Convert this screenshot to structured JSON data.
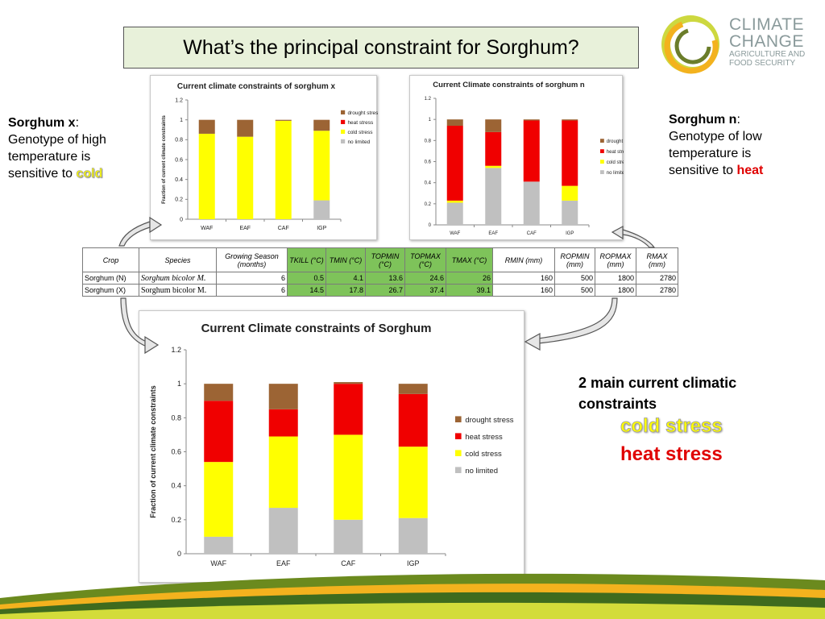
{
  "slide": {
    "title": "What’s the principal constraint for Sorghum?",
    "logo": {
      "line1": "CLIMATE",
      "line2": "CHANGE",
      "line3": "AGRICULTURE AND",
      "line4": "FOOD SECURITY"
    },
    "left_note": {
      "name": "Sorghum x",
      "colon": ":",
      "line1": "Genotype of high",
      "line2": "temperature is",
      "line3": "sensitive to ",
      "highlight": "cold"
    },
    "right_note": {
      "name": "Sorghum n",
      "colon": ":",
      "line1": "Genotype of low",
      "line2": "temperature is",
      "line3": "sensitive to ",
      "highlight": "heat"
    },
    "constraints": {
      "line1": "2 main current climatic",
      "line2": "constraints",
      "item1": "cold stress",
      "item2": "heat stress"
    }
  },
  "colors": {
    "drought": "#9c6434",
    "heat": "#f00000",
    "cold": "#ffff00",
    "nolimit": "#c0c0c0",
    "title_bg": "#e8f1da",
    "table_green": "#7ec35a"
  },
  "table": {
    "headers": [
      "Crop",
      "Species",
      "Growing Season (months)",
      "TKILL (°C)",
      "TMIN (°C)",
      "TOPMIN (°C)",
      "TOPMAX (°C)",
      "TMAX (°C)",
      "RMIN (mm)",
      "ROPMIN (mm)",
      "ROPMAX (mm)",
      "RMAX (mm)"
    ],
    "rows": [
      [
        "Sorghum (N)",
        "Sorghum bicolor M.",
        "6",
        "0.5",
        "4.1",
        "13.6",
        "24.6",
        "26",
        "160",
        "500",
        "1800",
        "2780"
      ],
      [
        "Sorghum (X)",
        "Sorghum bicolor M.",
        "6",
        "14.5",
        "17.8",
        "26.7",
        "37.4",
        "39.1",
        "160",
        "500",
        "1800",
        "2780"
      ]
    ]
  },
  "chart_data": [
    {
      "type": "bar",
      "stacked": true,
      "title": "Current climate constraints of sorghum x",
      "ylabel": "Fraction of current climate constraints",
      "xlabel": "",
      "ylim": [
        0,
        1.2
      ],
      "yticks": [
        "0",
        "0.2",
        "0.4",
        "0.6",
        "0.8",
        "1",
        "1.2"
      ],
      "categories": [
        "WAF",
        "EAF",
        "CAF",
        "IGP"
      ],
      "legend_position": "right",
      "series": [
        {
          "name": "no limited",
          "color": "#c0c0c0",
          "values": [
            0,
            0,
            0,
            0.19
          ]
        },
        {
          "name": "cold stress",
          "color": "#ffff00",
          "values": [
            0.86,
            0.83,
            0.99,
            0.7
          ]
        },
        {
          "name": "heat stress",
          "color": "#f00000",
          "values": [
            0,
            0,
            0,
            0
          ]
        },
        {
          "name": "drought stress",
          "color": "#9c6434",
          "values": [
            0.14,
            0.17,
            0.01,
            0.11
          ]
        }
      ]
    },
    {
      "type": "bar",
      "stacked": true,
      "title": "Current Climate constraints of sorghum n",
      "ylabel": "",
      "xlabel": "",
      "ylim": [
        0,
        1.2
      ],
      "yticks": [
        "0",
        "0.2",
        "0.4",
        "0.6",
        "0.8",
        "1",
        "1.2"
      ],
      "categories": [
        "WAF",
        "EAF",
        "CAF",
        "IGP"
      ],
      "legend_position": "right",
      "series": [
        {
          "name": "no limited",
          "color": "#c0c0c0",
          "values": [
            0.21,
            0.54,
            0.41,
            0.23
          ]
        },
        {
          "name": "cold stress",
          "color": "#ffff00",
          "values": [
            0.02,
            0.02,
            0,
            0.14
          ]
        },
        {
          "name": "heat stress",
          "color": "#f00000",
          "values": [
            0.71,
            0.32,
            0.58,
            0.62
          ]
        },
        {
          "name": "drought stress",
          "color": "#9c6434",
          "values": [
            0.06,
            0.12,
            0.01,
            0.01
          ]
        }
      ]
    },
    {
      "type": "bar",
      "stacked": true,
      "title": "Current Climate constraints of Sorghum",
      "ylabel": "Fraction of current climate constraints",
      "xlabel": "",
      "ylim": [
        0,
        1.2
      ],
      "yticks": [
        "0",
        "0.2",
        "0.4",
        "0.6",
        "0.8",
        "1",
        "1.2"
      ],
      "categories": [
        "WAF",
        "EAF",
        "CAF",
        "IGP"
      ],
      "legend_position": "right",
      "series": [
        {
          "name": "no limited",
          "color": "#c0c0c0",
          "values": [
            0.1,
            0.27,
            0.2,
            0.21
          ]
        },
        {
          "name": "cold stress",
          "color": "#ffff00",
          "values": [
            0.44,
            0.42,
            0.5,
            0.42
          ]
        },
        {
          "name": "heat stress",
          "color": "#f00000",
          "values": [
            0.36,
            0.16,
            0.3,
            0.31
          ]
        },
        {
          "name": "drought stress",
          "color": "#9c6434",
          "values": [
            0.1,
            0.15,
            0.01,
            0.06
          ]
        }
      ]
    }
  ]
}
